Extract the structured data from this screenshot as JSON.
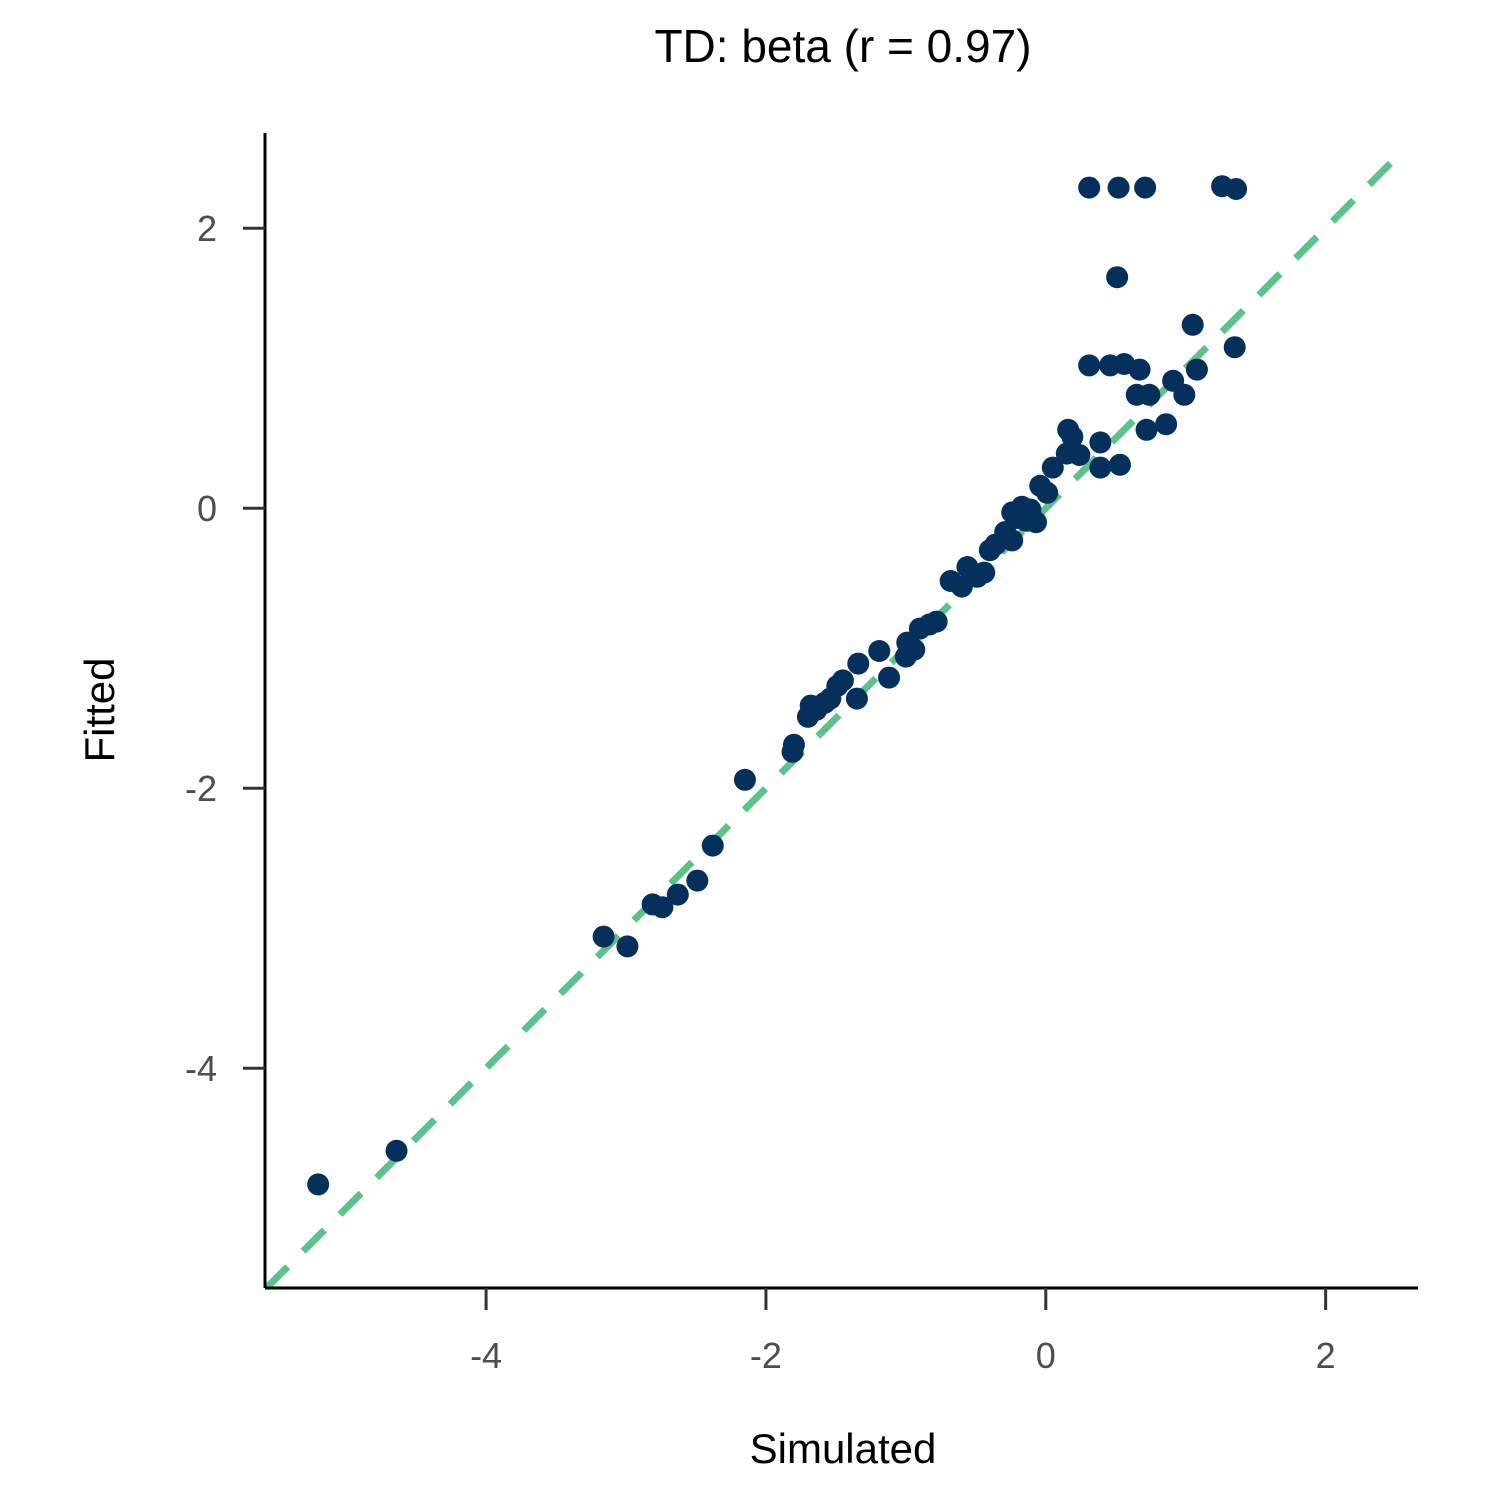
{
  "chart_data": {
    "type": "scatter",
    "title": "TD: beta (r = 0.97)",
    "xlabel": "Simulated",
    "ylabel": "Fitted",
    "xlim": [
      -5.58,
      2.66
    ],
    "ylim": [
      -5.57,
      2.68
    ],
    "xticks": [
      -4,
      -2,
      0,
      2
    ],
    "yticks": [
      -4,
      -2,
      0,
      2
    ],
    "xtick_labels": [
      "-4",
      "-2",
      "0",
      "2"
    ],
    "ytick_labels": [
      "-4",
      "-2",
      "0",
      "2"
    ],
    "grid": false,
    "point_color": "#06305c",
    "reference_line": {
      "type": "identity",
      "style": "dashed",
      "color": "#5ac38a"
    },
    "points": [
      [
        -5.2,
        -4.83
      ],
      [
        -4.64,
        -4.59
      ],
      [
        -3.16,
        -3.06
      ],
      [
        -2.99,
        -3.13
      ],
      [
        -2.81,
        -2.83
      ],
      [
        -2.74,
        -2.85
      ],
      [
        -2.63,
        -2.76
      ],
      [
        -2.49,
        -2.66
      ],
      [
        -2.38,
        -2.41
      ],
      [
        -2.15,
        -1.94
      ],
      [
        -1.81,
        -1.74
      ],
      [
        -1.8,
        -1.69
      ],
      [
        -1.7,
        -1.49
      ],
      [
        -1.68,
        -1.41
      ],
      [
        -1.64,
        -1.44
      ],
      [
        -1.58,
        -1.39
      ],
      [
        -1.54,
        -1.36
      ],
      [
        -1.49,
        -1.27
      ],
      [
        -1.45,
        -1.23
      ],
      [
        -1.35,
        -1.36
      ],
      [
        -1.34,
        -1.11
      ],
      [
        -1.19,
        -1.02
      ],
      [
        -1.12,
        -1.21
      ],
      [
        -1.0,
        -1.06
      ],
      [
        -0.99,
        -0.96
      ],
      [
        -0.94,
        -1.01
      ],
      [
        -0.9,
        -0.86
      ],
      [
        -0.83,
        -0.83
      ],
      [
        -0.78,
        -0.81
      ],
      [
        -0.68,
        -0.52
      ],
      [
        -0.6,
        -0.56
      ],
      [
        -0.56,
        -0.42
      ],
      [
        -0.49,
        -0.49
      ],
      [
        -0.44,
        -0.46
      ],
      [
        -0.4,
        -0.3
      ],
      [
        -0.36,
        -0.26
      ],
      [
        -0.29,
        -0.17
      ],
      [
        -0.24,
        -0.23
      ],
      [
        -0.24,
        -0.03
      ],
      [
        -0.21,
        -0.07
      ],
      [
        -0.17,
        0.01
      ],
      [
        -0.14,
        -0.09
      ],
      [
        -0.11,
        -0.01
      ],
      [
        -0.07,
        -0.1
      ],
      [
        -0.04,
        0.16
      ],
      [
        0.01,
        0.11
      ],
      [
        0.05,
        0.29
      ],
      [
        0.15,
        0.39
      ],
      [
        0.16,
        0.56
      ],
      [
        0.19,
        0.51
      ],
      [
        0.24,
        0.38
      ],
      [
        0.31,
        1.02
      ],
      [
        0.39,
        0.29
      ],
      [
        0.39,
        0.47
      ],
      [
        0.46,
        1.02
      ],
      [
        0.53,
        0.31
      ],
      [
        0.56,
        1.03
      ],
      [
        0.67,
        0.99
      ],
      [
        0.65,
        0.81
      ],
      [
        0.72,
        0.56
      ],
      [
        0.74,
        0.81
      ],
      [
        0.86,
        0.6
      ],
      [
        0.91,
        0.91
      ],
      [
        0.99,
        0.81
      ],
      [
        1.05,
        1.31
      ],
      [
        1.08,
        0.99
      ],
      [
        1.35,
        1.15
      ],
      [
        0.31,
        2.29
      ],
      [
        0.52,
        2.29
      ],
      [
        0.71,
        2.29
      ],
      [
        1.26,
        2.3
      ],
      [
        1.36,
        2.28
      ],
      [
        0.51,
        1.65
      ]
    ]
  }
}
